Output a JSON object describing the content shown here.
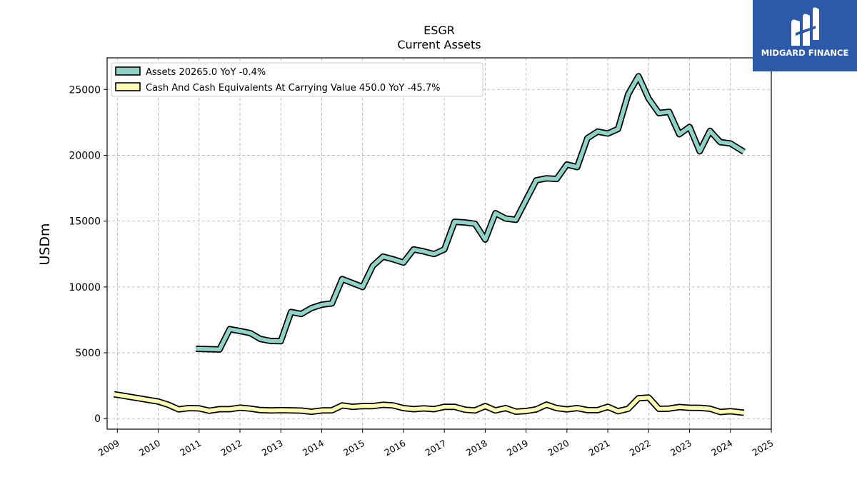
{
  "brand": {
    "name": "MIDGARD FINANCE",
    "bg_color": "#2d5aa8"
  },
  "chart_data": {
    "type": "line",
    "title": "ESGR",
    "subtitle": "Current  Assets",
    "ylabel": "USDm",
    "xlabel": "",
    "ylim": [
      -800,
      27400
    ],
    "xlim": [
      2008.75,
      2025.0
    ],
    "yticks": [
      0,
      5000,
      10000,
      15000,
      20000,
      25000
    ],
    "xticks": [
      2009,
      2010,
      2011,
      2012,
      2013,
      2014,
      2015,
      2016,
      2017,
      2018,
      2019,
      2020,
      2021,
      2022,
      2023,
      2024,
      2025
    ],
    "grid": true,
    "legend_position": "top-left",
    "series": [
      {
        "name": "Assets  20265.0 YoY -0.4%",
        "color": "#8dd3c7",
        "points": [
          [
            2010.92,
            5300
          ],
          [
            2011.5,
            5250
          ],
          [
            2011.75,
            6800
          ],
          [
            2012.0,
            6650
          ],
          [
            2012.25,
            6500
          ],
          [
            2012.5,
            6050
          ],
          [
            2012.75,
            5900
          ],
          [
            2013.0,
            5880
          ],
          [
            2013.25,
            8100
          ],
          [
            2013.5,
            7950
          ],
          [
            2013.75,
            8400
          ],
          [
            2014.0,
            8650
          ],
          [
            2014.25,
            8750
          ],
          [
            2014.5,
            10600
          ],
          [
            2014.75,
            10300
          ],
          [
            2015.0,
            10000
          ],
          [
            2015.25,
            11600
          ],
          [
            2015.5,
            12300
          ],
          [
            2015.75,
            12100
          ],
          [
            2016.0,
            11850
          ],
          [
            2016.25,
            12850
          ],
          [
            2016.5,
            12700
          ],
          [
            2016.75,
            12500
          ],
          [
            2017.0,
            12850
          ],
          [
            2017.25,
            14950
          ],
          [
            2017.5,
            14900
          ],
          [
            2017.75,
            14800
          ],
          [
            2018.0,
            13600
          ],
          [
            2018.25,
            15600
          ],
          [
            2018.5,
            15200
          ],
          [
            2018.75,
            15100
          ],
          [
            2019.0,
            16600
          ],
          [
            2019.25,
            18100
          ],
          [
            2019.5,
            18250
          ],
          [
            2019.75,
            18200
          ],
          [
            2020.0,
            19300
          ],
          [
            2020.25,
            19100
          ],
          [
            2020.5,
            21300
          ],
          [
            2020.75,
            21800
          ],
          [
            2021.0,
            21650
          ],
          [
            2021.25,
            22000
          ],
          [
            2021.5,
            24650
          ],
          [
            2021.75,
            26000
          ],
          [
            2022.0,
            24300
          ],
          [
            2022.25,
            23200
          ],
          [
            2022.5,
            23300
          ],
          [
            2022.75,
            21600
          ],
          [
            2023.0,
            22150
          ],
          [
            2023.25,
            20300
          ],
          [
            2023.5,
            21850
          ],
          [
            2023.75,
            21000
          ],
          [
            2024.0,
            20900
          ],
          [
            2024.33,
            20265
          ]
        ]
      },
      {
        "name": "Cash And Cash Equivalents At Carrying Value  450.0 YoY -45.7%",
        "color": "#ffffb3",
        "points": [
          [
            2008.92,
            1850
          ],
          [
            2010.0,
            1300
          ],
          [
            2010.25,
            1050
          ],
          [
            2010.5,
            700
          ],
          [
            2010.75,
            800
          ],
          [
            2011.0,
            780
          ],
          [
            2011.25,
            600
          ],
          [
            2011.5,
            720
          ],
          [
            2011.75,
            720
          ],
          [
            2012.0,
            830
          ],
          [
            2012.25,
            760
          ],
          [
            2012.5,
            650
          ],
          [
            2012.75,
            620
          ],
          [
            2013.0,
            640
          ],
          [
            2013.5,
            610
          ],
          [
            2013.75,
            520
          ],
          [
            2014.0,
            620
          ],
          [
            2014.25,
            630
          ],
          [
            2014.5,
            1000
          ],
          [
            2014.75,
            900
          ],
          [
            2015.0,
            950
          ],
          [
            2015.25,
            950
          ],
          [
            2015.5,
            1050
          ],
          [
            2015.75,
            1000
          ],
          [
            2016.0,
            800
          ],
          [
            2016.25,
            720
          ],
          [
            2016.5,
            780
          ],
          [
            2016.75,
            720
          ],
          [
            2017.0,
            900
          ],
          [
            2017.25,
            900
          ],
          [
            2017.5,
            680
          ],
          [
            2017.75,
            620
          ],
          [
            2018.0,
            950
          ],
          [
            2018.25,
            620
          ],
          [
            2018.5,
            800
          ],
          [
            2018.75,
            530
          ],
          [
            2019.0,
            580
          ],
          [
            2019.25,
            700
          ],
          [
            2019.5,
            1060
          ],
          [
            2019.75,
            800
          ],
          [
            2020.0,
            700
          ],
          [
            2020.25,
            800
          ],
          [
            2020.5,
            650
          ],
          [
            2020.75,
            640
          ],
          [
            2021.0,
            900
          ],
          [
            2021.25,
            560
          ],
          [
            2021.5,
            750
          ],
          [
            2021.75,
            1550
          ],
          [
            2022.0,
            1600
          ],
          [
            2022.25,
            740
          ],
          [
            2022.5,
            760
          ],
          [
            2022.75,
            880
          ],
          [
            2023.0,
            820
          ],
          [
            2023.25,
            820
          ],
          [
            2023.5,
            750
          ],
          [
            2023.75,
            500
          ],
          [
            2024.0,
            560
          ],
          [
            2024.33,
            450
          ]
        ]
      }
    ]
  }
}
